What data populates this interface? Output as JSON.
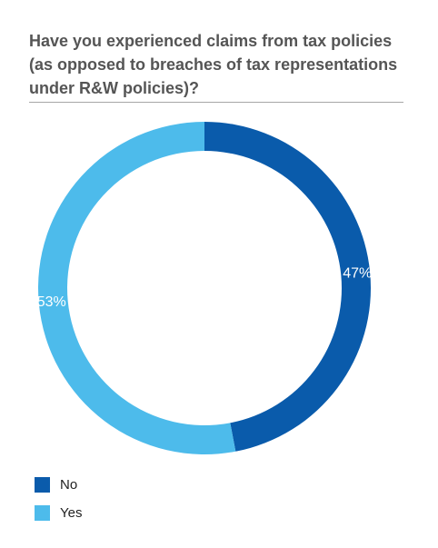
{
  "title": {
    "lines": [
      "Have you experienced claims from tax policies",
      "(as opposed to breaches of tax representations",
      "under R&W policies)?"
    ]
  },
  "chart_data": {
    "type": "pie",
    "subtype": "donut",
    "title": "Have you experienced claims from tax policies (as opposed to breaches of tax representations under R&W policies)?",
    "categories": [
      "No",
      "Yes"
    ],
    "values": [
      47,
      53
    ],
    "labels": [
      "47%",
      "53%"
    ],
    "colors": [
      "#0a5bab",
      "#4dbbeb"
    ],
    "legend_position": "bottom-left",
    "start": "top",
    "direction": "clockwise"
  },
  "legend": [
    {
      "label": "No",
      "color": "#0a5bab"
    },
    {
      "label": "Yes",
      "color": "#4dbbeb"
    }
  ]
}
